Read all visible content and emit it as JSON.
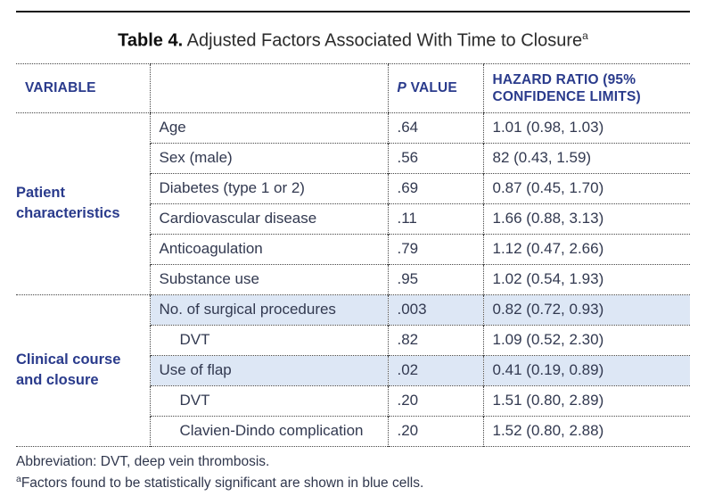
{
  "title": {
    "label": "Table 4.",
    "text": " Adjusted Factors Associated With Time to Closure",
    "superscript": "a"
  },
  "colors": {
    "header_navy": "#2a3b8c",
    "body_text": "#323950",
    "highlight_blue": "#dde7f5",
    "rule_black": "#151515",
    "dotted_border": "#454545"
  },
  "table": {
    "headers": {
      "variable": "VARIABLE",
      "blank": "",
      "p_italic": "P",
      "p_rest": "VALUE",
      "hazard": "HAZARD RATIO (95% CONFIDENCE LIMITS)"
    },
    "groups": [
      {
        "label": "Patient characteristics",
        "rows": [
          {
            "name": "Age",
            "p": ".64",
            "hr": "1.01 (0.98, 1.03)",
            "indent": false,
            "highlight": false
          },
          {
            "name": "Sex (male)",
            "p": ".56",
            "hr": "82 (0.43, 1.59)",
            "indent": false,
            "highlight": false
          },
          {
            "name": "Diabetes (type 1 or 2)",
            "p": ".69",
            "hr": "0.87 (0.45, 1.70)",
            "indent": false,
            "highlight": false
          },
          {
            "name": "Cardiovascular disease",
            "p": ".11",
            "hr": "1.66 (0.88, 3.13)",
            "indent": false,
            "highlight": false
          },
          {
            "name": "Anticoagulation",
            "p": ".79",
            "hr": "1.12 (0.47, 2.66)",
            "indent": false,
            "highlight": false
          },
          {
            "name": "Substance use",
            "p": ".95",
            "hr": "1.02 (0.54, 1.93)",
            "indent": false,
            "highlight": false
          }
        ]
      },
      {
        "label": "Clinical course and closure",
        "rows": [
          {
            "name": "No. of surgical procedures",
            "p": ".003",
            "hr": "0.82 (0.72, 0.93)",
            "indent": false,
            "highlight": true
          },
          {
            "name": "DVT",
            "p": ".82",
            "hr": "1.09 (0.52, 2.30)",
            "indent": true,
            "highlight": false
          },
          {
            "name": "Use of flap",
            "p": ".02",
            "hr": "0.41 (0.19, 0.89)",
            "indent": false,
            "highlight": true
          },
          {
            "name": "DVT",
            "p": ".20",
            "hr": "1.51 (0.80, 2.89)",
            "indent": true,
            "highlight": false
          },
          {
            "name": "Clavien-Dindo complication",
            "p": ".20",
            "hr": "1.52 (0.80, 2.88)",
            "indent": true,
            "highlight": false
          }
        ]
      }
    ]
  },
  "footnotes": {
    "abbreviation": "Abbreviation: DVT, deep vein thrombosis.",
    "marker": "a",
    "significance": "Factors found to be statistically significant are shown in blue cells."
  }
}
